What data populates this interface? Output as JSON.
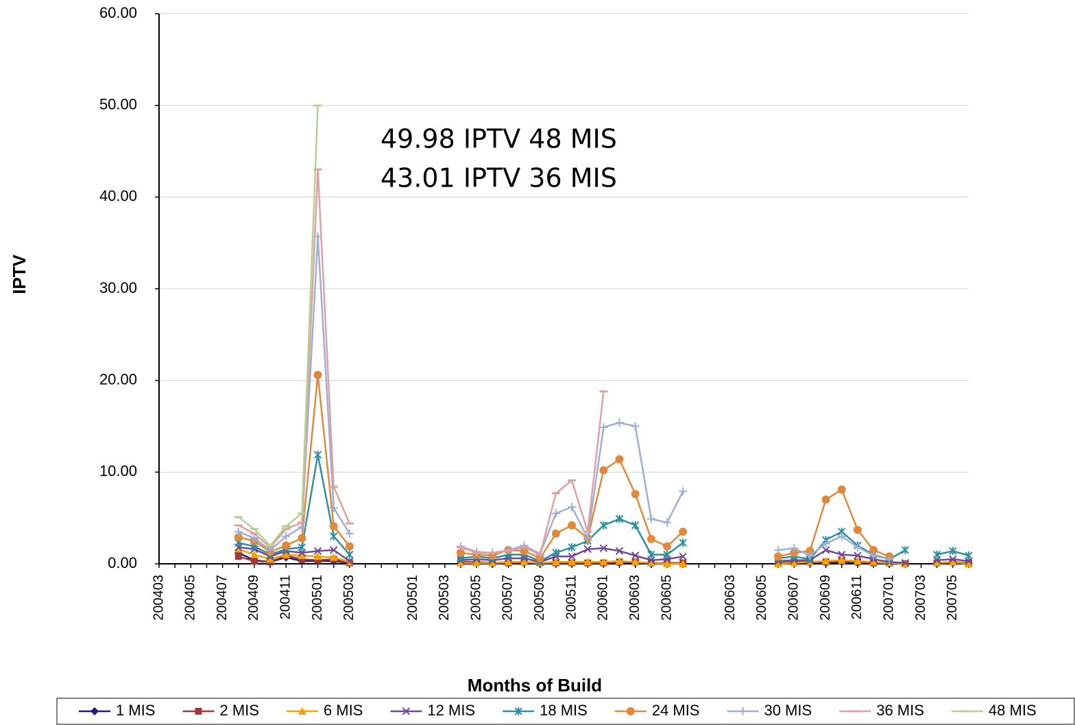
{
  "chart_data": {
    "type": "line",
    "annotations": [
      "49.98 IPTV 48 MIS",
      "43.01 IPTV 36 MIS"
    ],
    "xlabel": "Months of Build",
    "ylabel": "IPTV",
    "categories": [
      "200403",
      null,
      "200405",
      null,
      "200407",
      null,
      "200409",
      null,
      "200411",
      null,
      "200501",
      null,
      "200503",
      null,
      null,
      null,
      "200501",
      null,
      "200503",
      null,
      "200505",
      null,
      "200507",
      null,
      "200509",
      null,
      "200511",
      null,
      "200601",
      null,
      "200603",
      null,
      "200605",
      null,
      null,
      null,
      "200603",
      null,
      "200605",
      null,
      "200607",
      null,
      "200609",
      null,
      "200611",
      null,
      "200701",
      null,
      "200703",
      null,
      "200705",
      null
    ],
    "ylim": [
      0,
      60
    ],
    "yticks": [
      {
        "value": 0,
        "label": "0.00"
      },
      {
        "value": 10,
        "label": "10.00"
      },
      {
        "value": 20,
        "label": "20.00"
      },
      {
        "value": 30,
        "label": "30.00"
      },
      {
        "value": 40,
        "label": "40.00"
      },
      {
        "value": 50,
        "label": "50.00"
      },
      {
        "value": 60,
        "label": "60.00"
      }
    ],
    "grid": true,
    "legend": "bottom",
    "series": [
      {
        "name": "1 MIS",
        "color": "#1f1f7a",
        "marker": "diamond",
        "values": [
          null,
          null,
          null,
          null,
          null,
          1.2,
          0.4,
          0.2,
          0.7,
          0.3,
          0.3,
          0.3,
          0.1,
          null,
          null,
          null,
          null,
          null,
          null,
          0.1,
          0.1,
          0.0,
          0.1,
          0.1,
          0.0,
          0.1,
          0.1,
          0.1,
          0.1,
          0.1,
          0.1,
          0.0,
          0.0,
          0.0,
          null,
          null,
          null,
          null,
          null,
          0.0,
          0.1,
          0.1,
          0.1,
          0.2,
          0.1,
          0.1,
          0.0,
          0.0,
          null,
          0.0,
          0.1,
          0.0
        ]
      },
      {
        "name": "2 MIS",
        "color": "#a0393a",
        "marker": "square",
        "values": [
          null,
          null,
          null,
          null,
          null,
          0.8,
          0.3,
          0.2,
          0.9,
          0.5,
          0.4,
          0.5,
          0.1,
          null,
          null,
          null,
          null,
          null,
          null,
          0.2,
          0.2,
          0.1,
          0.1,
          0.2,
          0.1,
          0.1,
          0.1,
          0.1,
          0.1,
          0.2,
          0.2,
          0.1,
          0.1,
          0.1,
          null,
          null,
          null,
          null,
          null,
          0.1,
          0.2,
          0.2,
          0.2,
          0.3,
          0.2,
          0.1,
          0.1,
          0.0,
          null,
          0.1,
          0.2,
          0.1
        ]
      },
      {
        "name": "6 MIS",
        "color": "#f5a300",
        "marker": "triangle",
        "values": [
          null,
          null,
          null,
          null,
          null,
          1.6,
          1.0,
          0.5,
          1.0,
          0.9,
          0.8,
          0.7,
          0.2,
          null,
          null,
          null,
          null,
          null,
          null,
          0.1,
          0.1,
          0.1,
          0.2,
          0.2,
          0.1,
          0.2,
          0.2,
          0.2,
          0.2,
          0.3,
          0.2,
          0.1,
          0.0,
          0.0,
          null,
          null,
          null,
          null,
          null,
          0.0,
          0.1,
          0.2,
          0.3,
          0.4,
          0.3,
          0.2,
          0.1,
          0.0,
          null,
          0.1,
          0.2,
          0.0
        ]
      },
      {
        "name": "12 MIS",
        "color": "#6e4a96",
        "marker": "x",
        "values": [
          null,
          null,
          null,
          null,
          null,
          1.8,
          1.6,
          0.8,
          1.4,
          1.2,
          1.4,
          1.5,
          0.3,
          null,
          null,
          null,
          null,
          null,
          null,
          0.4,
          0.5,
          0.4,
          0.6,
          0.6,
          0.2,
          0.8,
          0.8,
          1.6,
          1.7,
          1.4,
          0.9,
          0.4,
          0.5,
          0.8,
          null,
          null,
          null,
          null,
          null,
          0.3,
          0.4,
          0.4,
          1.5,
          1.0,
          0.9,
          0.5,
          0.2,
          0.1,
          null,
          0.4,
          0.5,
          0.3
        ]
      },
      {
        "name": "18 MIS",
        "color": "#2e8fa0",
        "marker": "star",
        "values": [
          null,
          null,
          null,
          null,
          null,
          2.3,
          1.9,
          1.0,
          1.6,
          1.8,
          11.9,
          3.0,
          1.0,
          null,
          null,
          null,
          null,
          null,
          null,
          0.6,
          0.8,
          0.6,
          1.0,
          1.0,
          0.3,
          1.2,
          1.8,
          2.5,
          4.2,
          4.9,
          4.2,
          1.0,
          1.0,
          2.3,
          null,
          null,
          null,
          null,
          null,
          0.6,
          0.8,
          0.5,
          2.6,
          3.5,
          2.0,
          1.0,
          0.5,
          1.5,
          null,
          1.0,
          1.4,
          0.9
        ]
      },
      {
        "name": "24 MIS",
        "color": "#e0893a",
        "marker": "circle",
        "values": [
          null,
          null,
          null,
          null,
          null,
          2.9,
          2.5,
          1.3,
          2.0,
          2.8,
          20.6,
          4.1,
          1.9,
          null,
          null,
          null,
          null,
          null,
          null,
          1.2,
          1.0,
          0.9,
          1.5,
          1.4,
          0.6,
          3.3,
          4.2,
          2.8,
          10.2,
          11.4,
          7.6,
          2.7,
          1.9,
          3.5,
          null,
          null,
          null,
          null,
          null,
          0.8,
          1.2,
          1.4,
          7.0,
          8.1,
          3.7,
          1.5,
          0.8,
          null,
          null,
          null,
          null,
          null
        ]
      },
      {
        "name": "30 MIS",
        "color": "#9dafd8",
        "marker": "plus",
        "values": [
          null,
          null,
          null,
          null,
          null,
          3.5,
          2.8,
          1.5,
          3.0,
          4.0,
          35.7,
          6.1,
          3.3,
          null,
          null,
          null,
          null,
          null,
          null,
          1.9,
          1.3,
          1.2,
          1.5,
          2.0,
          1.1,
          5.5,
          6.2,
          2.8,
          14.9,
          15.4,
          15.0,
          4.9,
          4.5,
          7.9,
          null,
          null,
          null,
          null,
          null,
          1.5,
          1.7,
          0.9,
          2.2,
          3.0,
          1.8,
          0.9,
          0.5,
          null,
          null,
          null,
          null,
          null
        ]
      },
      {
        "name": "36 MIS",
        "color": "#e0a0a0",
        "marker": "dash",
        "values": [
          null,
          null,
          null,
          null,
          null,
          4.2,
          3.3,
          1.8,
          3.8,
          4.5,
          43.01,
          8.4,
          4.4,
          null,
          null,
          null,
          null,
          null,
          null,
          1.8,
          1.2,
          1.2,
          1.4,
          1.8,
          1.0,
          7.7,
          9.1,
          3.5,
          18.8,
          null,
          null,
          null,
          null,
          null,
          null,
          null,
          null,
          null,
          null,
          null,
          null,
          null,
          null,
          null,
          null,
          null,
          null,
          null,
          null,
          null,
          null,
          null
        ]
      },
      {
        "name": "48 MIS",
        "color": "#b4d294",
        "marker": "dash",
        "values": [
          null,
          null,
          null,
          null,
          null,
          5.1,
          3.8,
          2.0,
          4.1,
          5.5,
          49.98,
          null,
          null,
          null,
          null,
          null,
          null,
          null,
          null,
          null,
          null,
          null,
          null,
          null,
          null,
          null,
          null,
          null,
          null,
          null,
          null,
          null,
          null,
          null,
          null,
          null,
          null,
          null,
          null,
          null,
          null,
          null,
          null,
          null,
          null,
          null,
          null,
          null,
          null,
          null,
          null,
          null
        ]
      }
    ]
  }
}
